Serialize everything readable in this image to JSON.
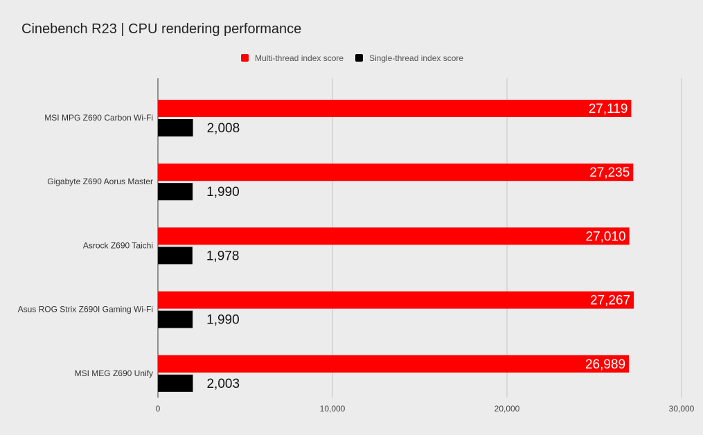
{
  "chart_data": {
    "type": "bar",
    "orientation": "horizontal",
    "title": "Cinebench R23 | CPU rendering performance",
    "categories": [
      "MSI MPG Z690 Carbon Wi-Fi",
      "Gigabyte Z690 Aorus Master",
      "Asrock Z690 Taichi",
      "Asus ROG Strix Z690I Gaming Wi-Fi",
      "MSI MEG Z690 Unify"
    ],
    "series": [
      {
        "name": "Multi-thread index score",
        "color": "#ff0000",
        "values": [
          27119,
          27235,
          27010,
          27267,
          26989
        ],
        "labels": [
          "27,119",
          "27,235",
          "27,010",
          "27,267",
          "26,989"
        ]
      },
      {
        "name": "Single-thread index score",
        "color": "#000000",
        "values": [
          2008,
          1990,
          1978,
          1990,
          2003
        ],
        "labels": [
          "2,008",
          "1,990",
          "1,978",
          "1,990",
          "2,003"
        ]
      }
    ],
    "xlim": [
      0,
      30000
    ],
    "xticks": [
      0,
      10000,
      20000,
      30000
    ],
    "xtick_labels": [
      "0",
      "10,000",
      "20,000",
      "30,000"
    ],
    "grid": true,
    "legend_position": "top-center",
    "background": "#ececec"
  }
}
